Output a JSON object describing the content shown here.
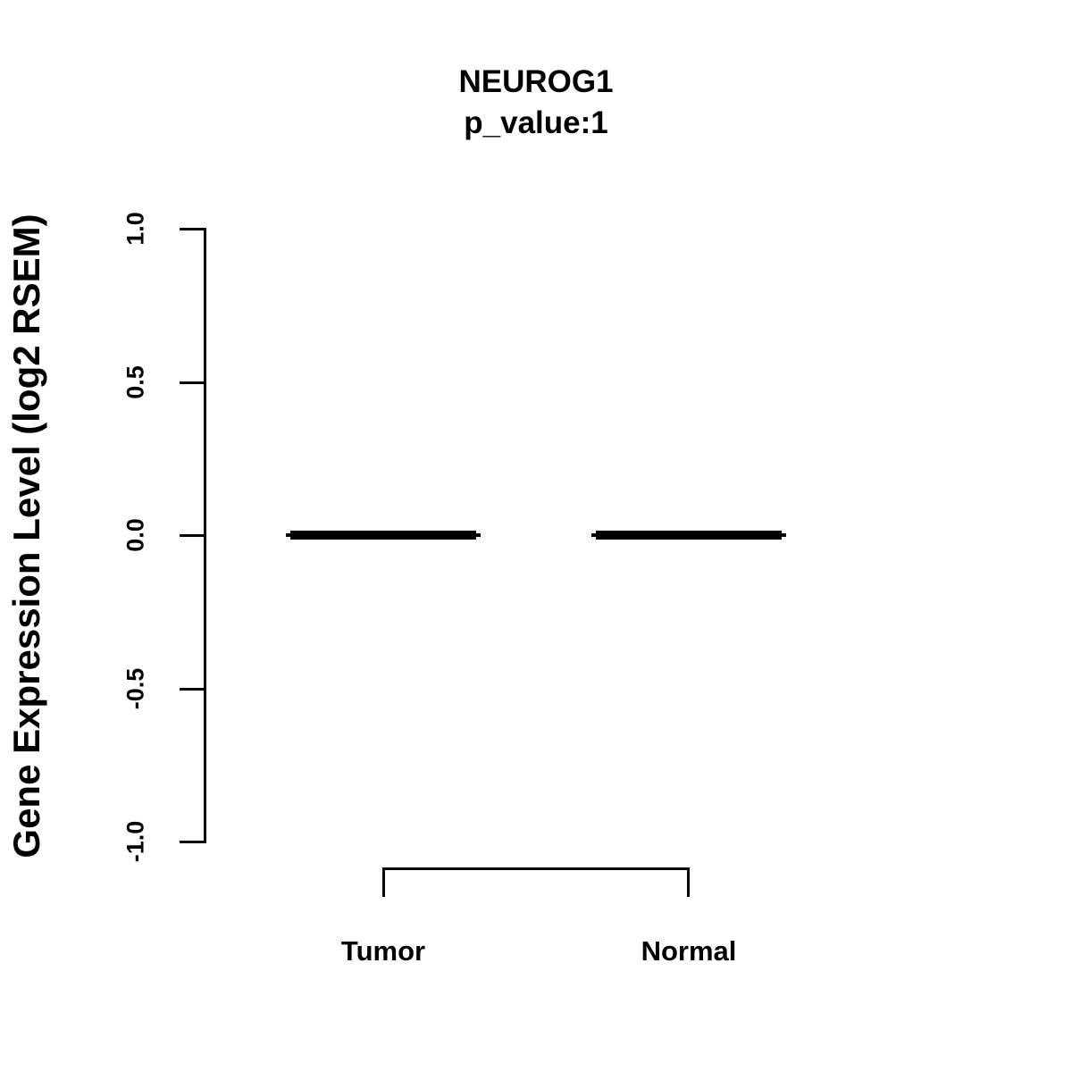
{
  "page": {
    "background_color": "#ffffff",
    "foreground_color": "#000000"
  },
  "chart_data": {
    "type": "boxplot",
    "title": "NEUROG1",
    "subtitle": "p_value:1",
    "xlabel": "",
    "ylabel": "Gene Expression Level (log2 RSEM)",
    "categories": [
      "Tumor",
      "Normal"
    ],
    "series": [
      {
        "name": "Tumor",
        "min": 0,
        "q1": 0,
        "median": 0,
        "q3": 0,
        "max": 0
      },
      {
        "name": "Normal",
        "min": 0,
        "q1": 0,
        "median": 0,
        "q3": 0,
        "max": 0
      }
    ],
    "yticks": [
      {
        "value": 1.0,
        "label": "1.0"
      },
      {
        "value": 0.5,
        "label": "0.5"
      },
      {
        "value": 0.0,
        "label": "0.0"
      },
      {
        "value": -0.5,
        "label": "-0.5"
      },
      {
        "value": -1.0,
        "label": "-1.0"
      }
    ],
    "ylim": [
      -1.0,
      1.0
    ],
    "grid": false,
    "legend": null,
    "annotation_bracket": {
      "from": "Tumor",
      "to": "Normal"
    }
  }
}
